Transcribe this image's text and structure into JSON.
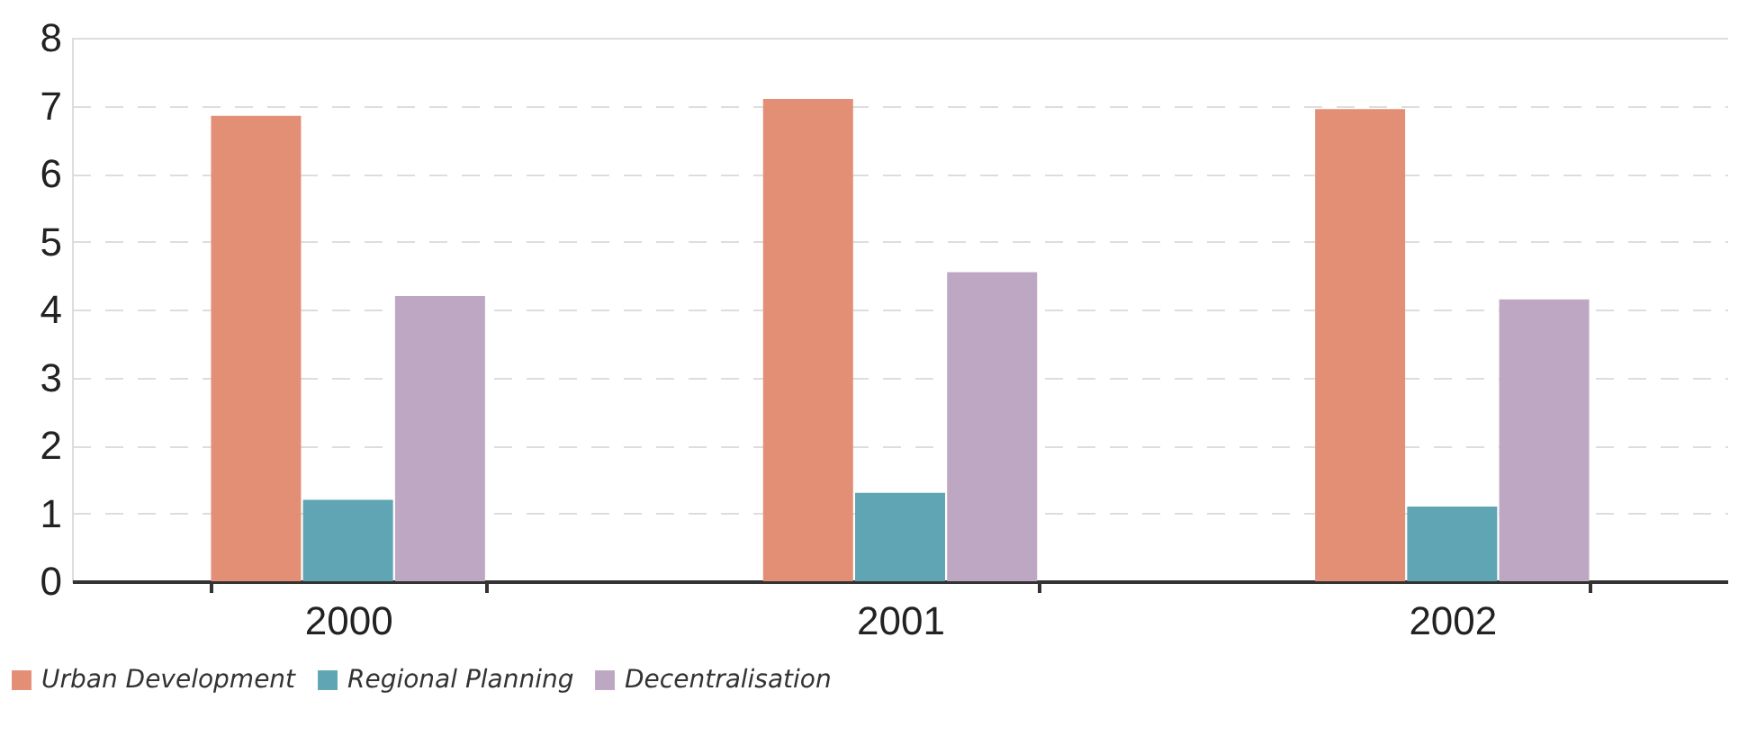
{
  "chart_data": {
    "type": "bar",
    "categories": [
      "2000",
      "2001",
      "2002"
    ],
    "series": [
      {
        "name": "Urban Development",
        "color": "#e38f76",
        "values": [
          6.85,
          7.1,
          6.95
        ]
      },
      {
        "name": "Regional Planning",
        "color": "#60a5b3",
        "values": [
          1.2,
          1.3,
          1.1
        ]
      },
      {
        "name": "Decentralisation",
        "color": "#bea7c3",
        "values": [
          4.2,
          4.55,
          4.15
        ]
      }
    ],
    "ylim": [
      0,
      8
    ],
    "yticks": [
      0,
      1,
      2,
      3,
      4,
      5,
      6,
      7,
      8
    ],
    "grid": "y",
    "legend": "bottom left"
  }
}
